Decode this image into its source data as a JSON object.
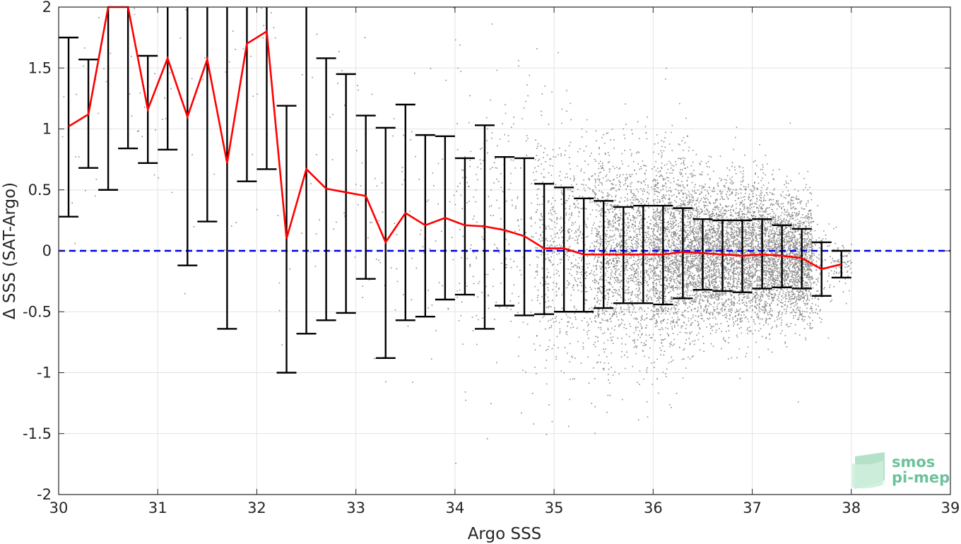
{
  "chart_data": {
    "type": "scatter",
    "title": "",
    "xlabel": "Argo SSS",
    "ylabel": "Δ SSS (SAT-Argo)",
    "xlim": [
      30,
      39
    ],
    "ylim": [
      -2,
      2
    ],
    "x_ticks": [
      30,
      31,
      32,
      33,
      34,
      35,
      36,
      37,
      38,
      39
    ],
    "y_ticks": [
      -2,
      -1.5,
      -1,
      -0.5,
      0,
      0.5,
      1,
      1.5,
      2
    ],
    "x_tick_labels": [
      "30",
      "31",
      "32",
      "33",
      "34",
      "35",
      "36",
      "37",
      "38",
      "39"
    ],
    "y_tick_labels": [
      "-2",
      "-1.5",
      "-1",
      "-0.5",
      "0",
      "0.5",
      "1",
      "1.5",
      "2"
    ],
    "grid": true,
    "reference_line": {
      "y": 0,
      "style": "dashed",
      "color": "#0000e6"
    },
    "scatter_color": "#8c8c8c",
    "mean_line_color": "#ff0000",
    "errorbar_color": "#000000",
    "series": [
      {
        "kind": "binned_mean_with_std",
        "x": [
          30.1,
          30.3,
          30.5,
          30.7,
          30.9,
          31.1,
          31.3,
          31.5,
          31.7,
          31.9,
          32.1,
          32.3,
          32.5,
          32.7,
          32.9,
          33.1,
          33.3,
          33.5,
          33.7,
          33.9,
          34.1,
          34.3,
          34.5,
          34.7,
          34.9,
          35.1,
          35.3,
          35.5,
          35.7,
          35.9,
          36.1,
          36.3,
          36.5,
          36.7,
          36.9,
          37.1,
          37.3,
          37.5,
          37.7,
          37.9
        ],
        "mean": [
          1.02,
          1.12,
          2.1,
          2.05,
          1.16,
          1.58,
          1.1,
          1.57,
          0.72,
          1.7,
          1.8,
          0.1,
          0.67,
          0.51,
          0.48,
          0.45,
          0.07,
          0.31,
          0.21,
          0.27,
          0.21,
          0.2,
          0.17,
          0.12,
          0.02,
          0.02,
          -0.03,
          -0.03,
          -0.03,
          -0.03,
          -0.03,
          -0.01,
          -0.02,
          -0.03,
          -0.04,
          -0.03,
          -0.04,
          -0.06,
          -0.15,
          -0.11
        ],
        "upper": [
          1.75,
          1.57,
          2.3,
          2.3,
          1.6,
          2.3,
          2.3,
          2.3,
          2.3,
          2.3,
          2.3,
          1.19,
          2.3,
          1.58,
          1.45,
          1.11,
          1.01,
          1.2,
          0.95,
          0.94,
          0.76,
          1.03,
          0.77,
          0.76,
          0.55,
          0.52,
          0.43,
          0.41,
          0.36,
          0.37,
          0.37,
          0.35,
          0.26,
          0.25,
          0.25,
          0.26,
          0.21,
          0.18,
          0.07,
          0.0
        ],
        "lower": [
          0.28,
          0.68,
          0.5,
          0.84,
          0.72,
          0.83,
          -0.12,
          0.24,
          -0.64,
          0.57,
          0.67,
          -1.0,
          -0.68,
          -0.57,
          -0.51,
          -0.23,
          -0.88,
          -0.57,
          -0.54,
          -0.4,
          -0.36,
          -0.64,
          -0.45,
          -0.53,
          -0.52,
          -0.5,
          -0.5,
          -0.47,
          -0.43,
          -0.43,
          -0.44,
          -0.39,
          -0.32,
          -0.33,
          -0.34,
          -0.31,
          -0.3,
          -0.31,
          -0.37,
          -0.22
        ]
      }
    ]
  },
  "logo": {
    "line1": "smos",
    "line2": "pi-mep"
  }
}
